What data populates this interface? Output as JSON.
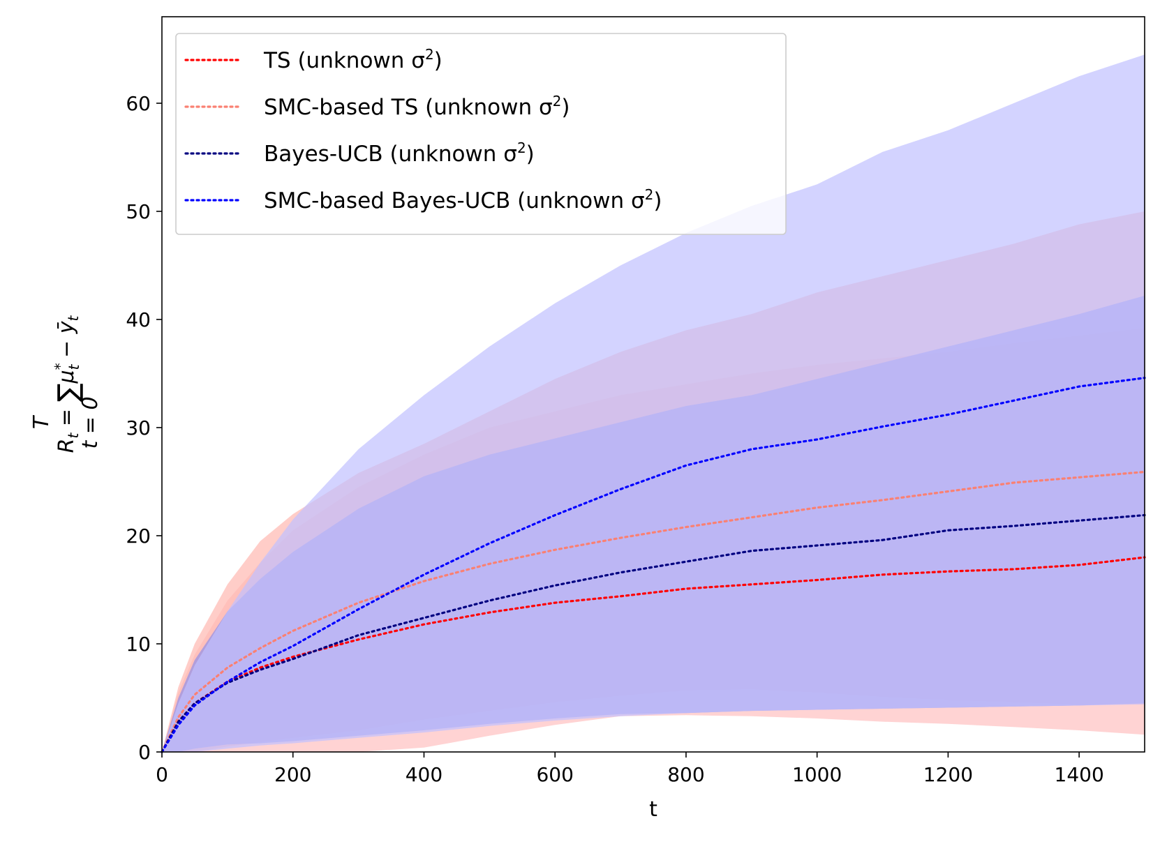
{
  "chart_data": {
    "type": "line",
    "title": "",
    "xlabel": "t",
    "ylabel": "R_t = ∑_{t=0}^{T} μ_t^* − ȳ_t",
    "ylabel_parts": {
      "r": "R",
      "r_sub": "t",
      "eq": " = ",
      "sum": "∑",
      "sum_top": "T",
      "sum_bottom": "t = 0",
      "mu": "μ",
      "mu_sup": "*",
      "mu_sub": "t",
      "minus": " − ",
      "y": "ȳ",
      "y_sub": "t"
    },
    "xlim": [
      0,
      1500
    ],
    "ylim": [
      0,
      68
    ],
    "xticks": [
      0,
      200,
      400,
      600,
      800,
      1000,
      1200,
      1400
    ],
    "yticks": [
      0,
      10,
      20,
      30,
      40,
      50,
      60
    ],
    "grid": false,
    "legend_position": "top-left",
    "x": [
      0,
      25,
      50,
      100,
      150,
      200,
      300,
      400,
      500,
      600,
      700,
      800,
      900,
      1000,
      1100,
      1200,
      1300,
      1400,
      1500
    ],
    "series": [
      {
        "name": "TS (unknown σ²)",
        "legend_base": "TS (unknown σ",
        "legend_sup": "2",
        "legend_close": ")",
        "color": "#ff0000",
        "band_color": "#ffc0c0",
        "mean": [
          0,
          2.8,
          4.5,
          6.5,
          7.8,
          8.8,
          10.4,
          11.8,
          12.9,
          13.8,
          14.4,
          15.1,
          15.5,
          15.9,
          16.4,
          16.7,
          16.9,
          17.3,
          18.0
        ],
        "upper": [
          0,
          5.5,
          9.0,
          14.0,
          17.5,
          20.5,
          24.5,
          27.5,
          30.0,
          31.5,
          33.0,
          34.0,
          35.0,
          35.8,
          36.4,
          37.0,
          37.8,
          38.5,
          39.2
        ],
        "lower": [
          0,
          0,
          0,
          0,
          0,
          0,
          0,
          0.4,
          1.5,
          2.5,
          3.3,
          3.4,
          3.3,
          3.1,
          2.8,
          2.6,
          2.3,
          2.0,
          1.6
        ]
      },
      {
        "name": "SMC-based TS (unknown σ²)",
        "legend_base": "SMC-based TS (unknown σ",
        "legend_sup": "2",
        "legend_close": ")",
        "color": "#fa8072",
        "band_color": "#ffb8b0",
        "mean": [
          0,
          3.2,
          5.3,
          7.8,
          9.6,
          11.2,
          13.8,
          15.8,
          17.4,
          18.7,
          19.8,
          20.8,
          21.7,
          22.6,
          23.3,
          24.1,
          24.9,
          25.4,
          25.9
        ],
        "upper": [
          0,
          6.0,
          10.0,
          15.5,
          19.5,
          22.0,
          25.8,
          28.5,
          31.5,
          34.5,
          37.0,
          39.0,
          40.5,
          42.5,
          44.0,
          45.5,
          47.0,
          48.8,
          50.0
        ],
        "lower": [
          0,
          0,
          0,
          0.5,
          0.9,
          1.3,
          2.0,
          3.0,
          3.8,
          4.6,
          5.2,
          5.7,
          5.8,
          5.5,
          5.1,
          4.8,
          4.6,
          4.4,
          4.4
        ]
      },
      {
        "name": "Bayes-UCB (unknown σ²)",
        "legend_base": "Bayes-UCB (unknown σ",
        "legend_sup": "2",
        "legend_close": ")",
        "color": "#000080",
        "band_color": "#9090e8",
        "mean": [
          0,
          2.8,
          4.5,
          6.4,
          7.6,
          8.6,
          10.8,
          12.4,
          14.0,
          15.4,
          16.6,
          17.6,
          18.6,
          19.1,
          19.6,
          20.5,
          20.9,
          21.4,
          21.9
        ],
        "upper": [
          0,
          5.0,
          8.5,
          13.0,
          16.0,
          18.5,
          22.5,
          25.5,
          27.5,
          29.0,
          30.5,
          32.0,
          33.0,
          34.5,
          36.0,
          37.5,
          39.0,
          40.5,
          42.2
        ],
        "lower": [
          0,
          0,
          0.3,
          0.7,
          0.8,
          1.0,
          1.5,
          2.0,
          2.6,
          3.1,
          3.5,
          3.6,
          3.8,
          3.9,
          4.0,
          4.1,
          4.2,
          4.3,
          4.5
        ]
      },
      {
        "name": "SMC-based Bayes-UCB (unknown σ²)",
        "legend_base": "SMC-based Bayes-UCB (unknown σ",
        "legend_sup": "2",
        "legend_close": ")",
        "color": "#0000ff",
        "band_color": "#c0c0ff",
        "mean": [
          0,
          2.5,
          4.3,
          6.5,
          8.3,
          9.8,
          13.2,
          16.4,
          19.3,
          21.9,
          24.3,
          26.5,
          28.0,
          28.9,
          30.1,
          31.2,
          32.5,
          33.8,
          34.6
        ],
        "upper": [
          0,
          4.5,
          8.0,
          13.0,
          17.5,
          21.5,
          28.0,
          33.0,
          37.5,
          41.5,
          45.0,
          48.0,
          50.5,
          52.5,
          55.5,
          57.5,
          60.0,
          62.5,
          64.5
        ],
        "lower": [
          0,
          0,
          0,
          0.3,
          0.6,
          0.8,
          1.3,
          1.8,
          2.4,
          2.9,
          3.3,
          3.6,
          3.8,
          3.9,
          4.0,
          4.1,
          4.2,
          4.3,
          4.4
        ]
      }
    ]
  }
}
